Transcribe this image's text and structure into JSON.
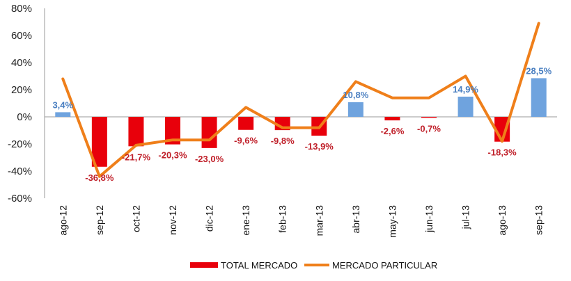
{
  "chart_data": {
    "type": "bar",
    "title": "",
    "xlabel": "",
    "ylabel": "",
    "ylim": [
      -60,
      80
    ],
    "yticks": [
      80,
      60,
      40,
      20,
      0,
      -20,
      -40,
      -60
    ],
    "ytick_labels": [
      "80%",
      "60%",
      "40%",
      "20%",
      "0%",
      "-20%",
      "-40%",
      "-60%"
    ],
    "grid": false,
    "legend_position": "bottom",
    "categories": [
      "ago-12",
      "sep-12",
      "oct-12",
      "nov-12",
      "dic-12",
      "ene-13",
      "feb-13",
      "mar-13",
      "abr-13",
      "may-13",
      "jun-13",
      "jul-13",
      "ago-13",
      "sep-13"
    ],
    "series": [
      {
        "name": "TOTAL MERCADO",
        "type": "bar",
        "values": [
          3.4,
          -36.8,
          -21.7,
          -20.3,
          -23.0,
          -9.6,
          -9.8,
          -13.9,
          10.8,
          -2.6,
          -0.7,
          14.9,
          -18.3,
          28.5
        ],
        "labels": [
          "3,4%",
          "-36,8%",
          "-21,7%",
          "-20,3%",
          "-23,0%",
          "-9,6%",
          "-9,8%",
          "-13,9%",
          "10,8%",
          "-2,6%",
          "-0,7%",
          "14,9%",
          "-18,3%",
          "28,5%"
        ],
        "color_negative": "#e8000b",
        "color_positive": "#6fa3de",
        "label_color_negative": "#c0202a",
        "label_color_positive": "#4a7fc1"
      },
      {
        "name": "MERCADO PARTICULAR",
        "type": "line",
        "values": [
          28,
          -44,
          -21,
          -17,
          -17,
          7,
          -8,
          -8,
          26,
          14,
          14,
          30,
          -18,
          69
        ],
        "color": "#ef7f1a"
      }
    ],
    "legend": {
      "entries": [
        {
          "label": "TOTAL MERCADO",
          "color": "#e8000b",
          "marker": "bar"
        },
        {
          "label": "MERCADO PARTICULAR",
          "color": "#ef7f1a",
          "marker": "line"
        }
      ]
    }
  }
}
